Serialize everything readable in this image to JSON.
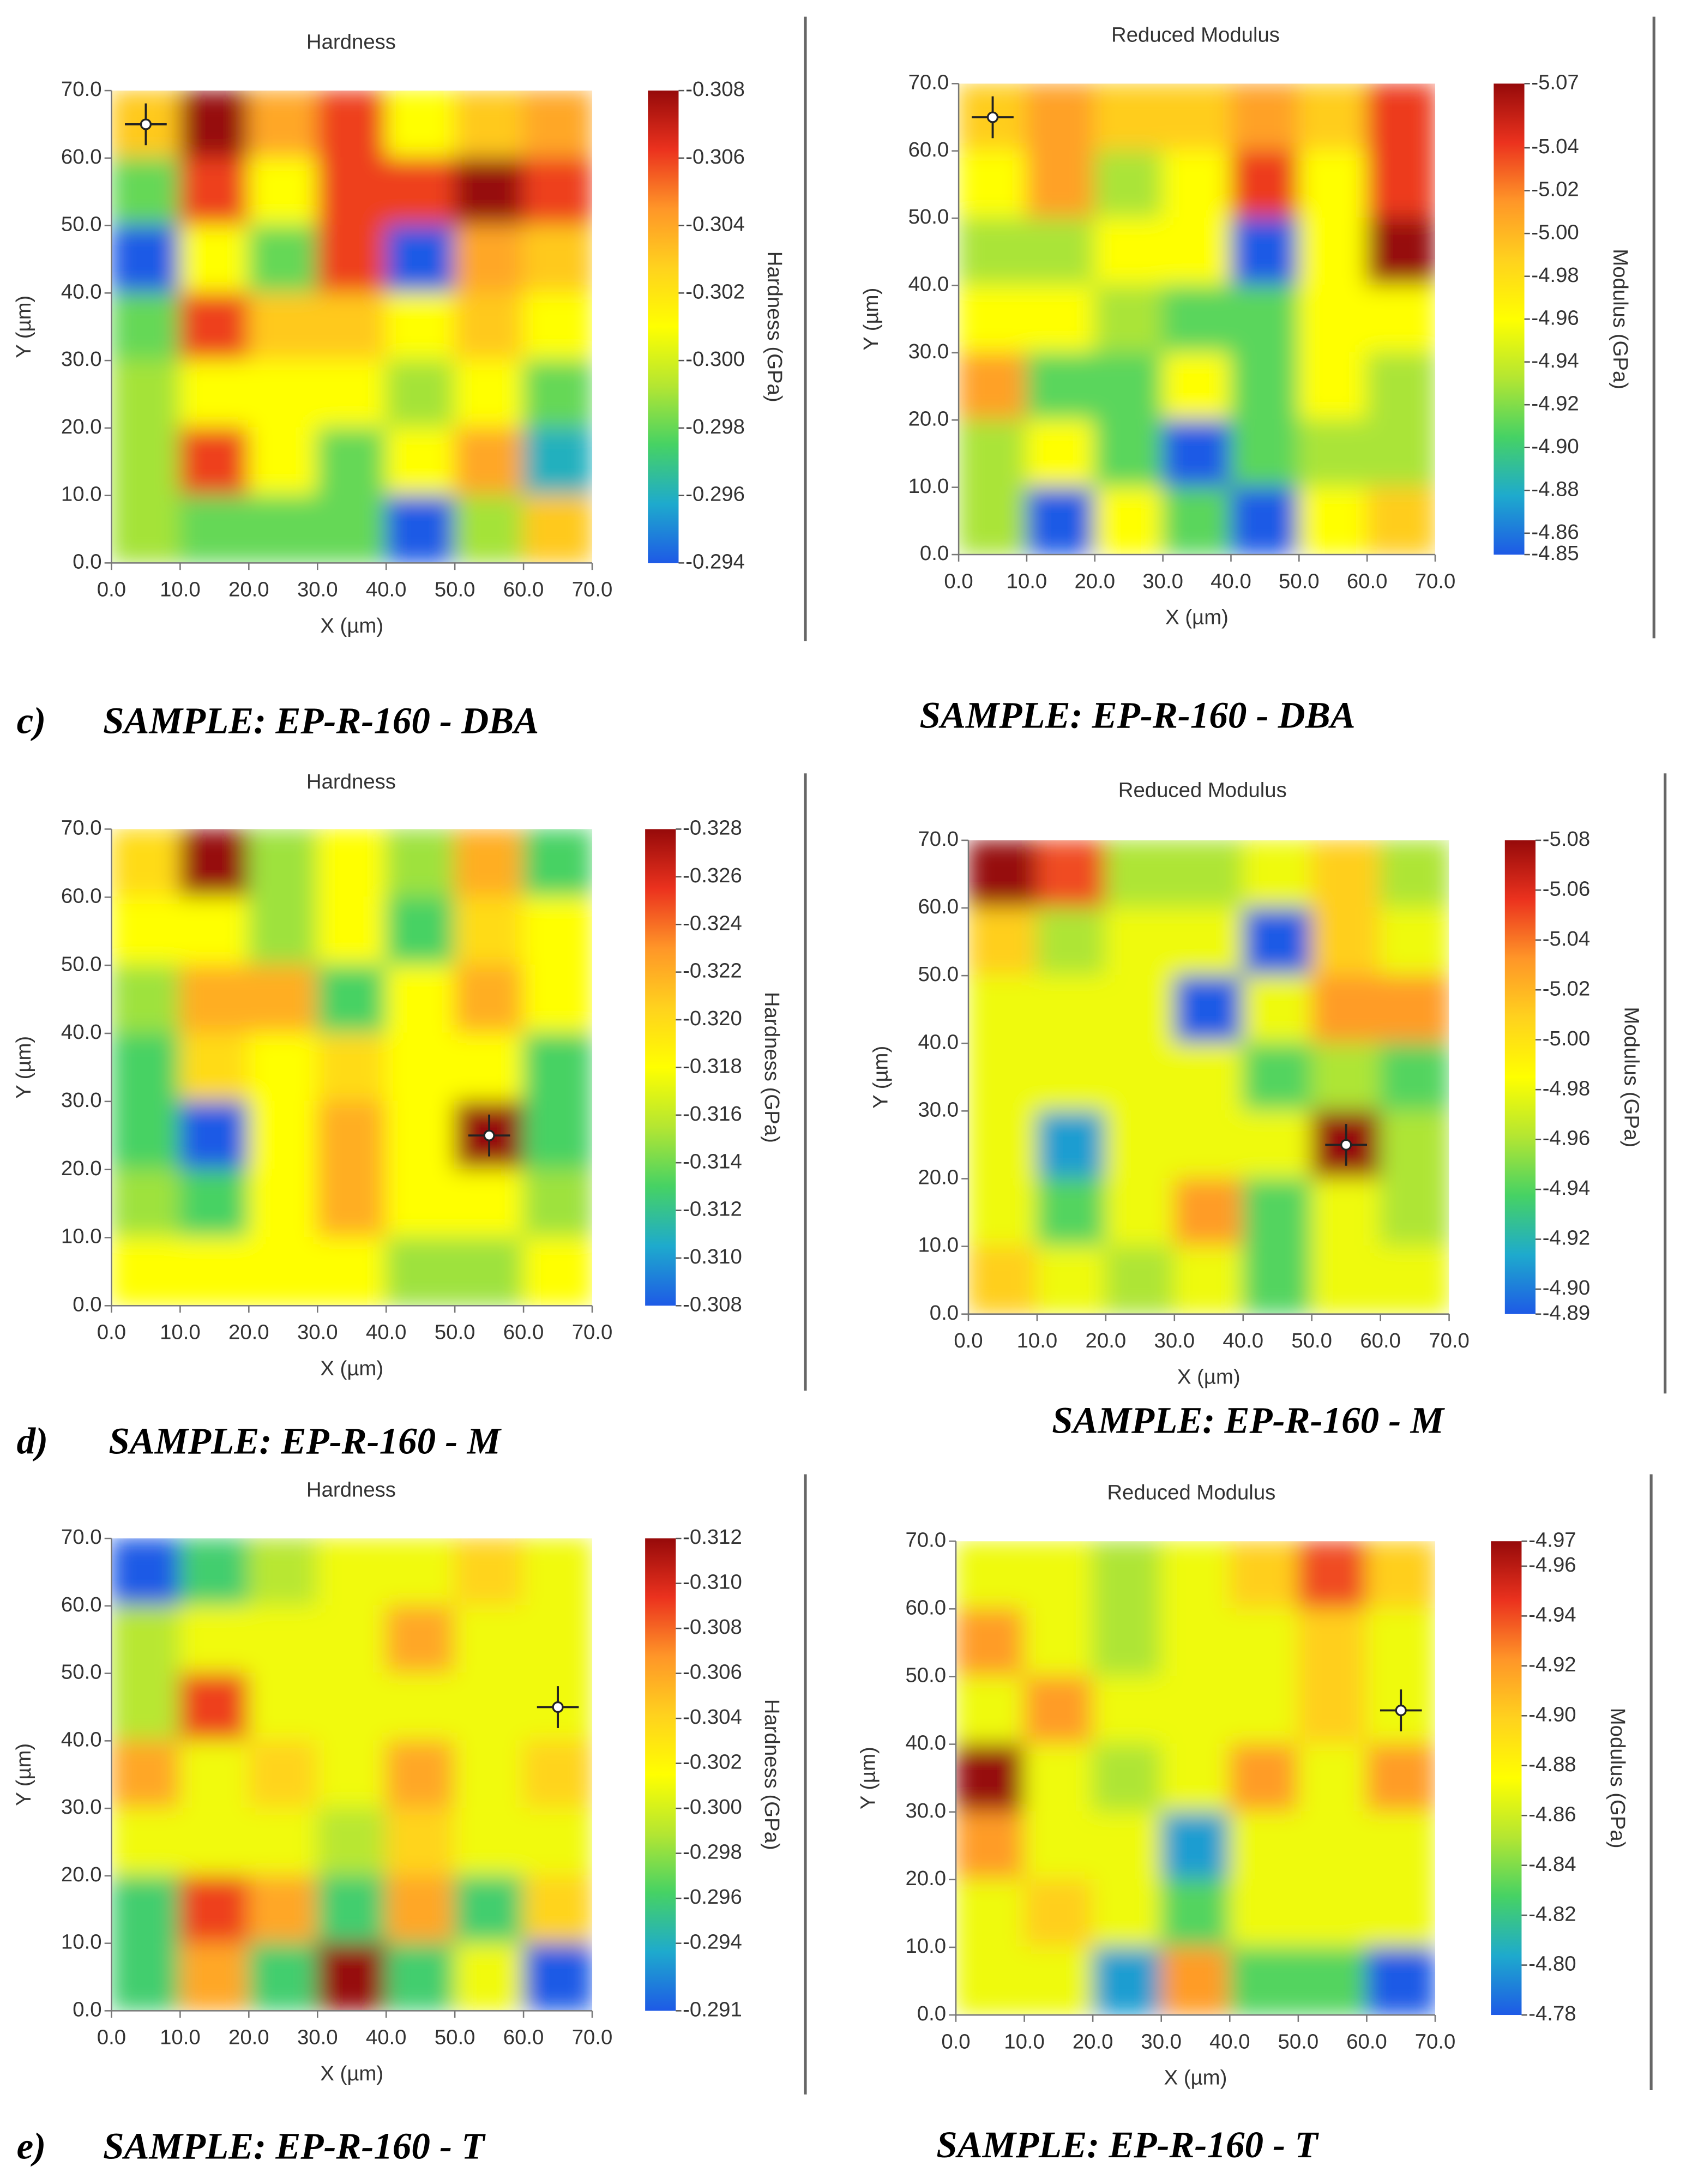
{
  "colormap": [
    "#1e5ae6",
    "#1eaacd",
    "#46d264",
    "#b4e632",
    "#ffff00",
    "#ffd21e",
    "#ff9628",
    "#eb321e",
    "#960a0a"
  ],
  "chart_data": [
    {
      "type": "heatmap",
      "title": "Hardness",
      "xlabel": "X (µm)",
      "ylabel": "Y (µm)",
      "colorbar_label": "Hardness (GPa)",
      "panel_label": "c)",
      "caption": "SAMPLE: EP-R-160 - DBA",
      "xlim": [
        0,
        70
      ],
      "ylim": [
        0,
        70
      ],
      "xticks": [
        {
          "value": 0,
          "label": "0.0"
        },
        {
          "value": 10,
          "label": "10.0"
        },
        {
          "value": 20,
          "label": "20.0"
        },
        {
          "value": 30,
          "label": "30.0"
        },
        {
          "value": 40,
          "label": "40.0"
        },
        {
          "value": 50,
          "label": "50.0"
        },
        {
          "value": 60,
          "label": "60.0"
        },
        {
          "value": 70,
          "label": "70.0"
        }
      ],
      "yticks": [
        {
          "value": 0,
          "label": "0.0"
        },
        {
          "value": 10,
          "label": "10.0"
        },
        {
          "value": 20,
          "label": "20.0"
        },
        {
          "value": 30,
          "label": "30.0"
        },
        {
          "value": 40,
          "label": "40.0"
        },
        {
          "value": 50,
          "label": "50.0"
        },
        {
          "value": 60,
          "label": "60.0"
        },
        {
          "value": 70,
          "label": "70.0"
        }
      ],
      "x": [
        5,
        15,
        25,
        35,
        45,
        55,
        65
      ],
      "y": [
        65,
        55,
        45,
        35,
        25,
        15,
        5
      ],
      "z": [
        [
          -0.303,
          -0.308,
          -0.304,
          -0.306,
          -0.301,
          -0.303,
          -0.304
        ],
        [
          -0.298,
          -0.306,
          -0.301,
          -0.306,
          -0.306,
          -0.308,
          -0.306
        ],
        [
          -0.294,
          -0.301,
          -0.298,
          -0.306,
          -0.294,
          -0.304,
          -0.303
        ],
        [
          -0.298,
          -0.306,
          -0.303,
          -0.303,
          -0.301,
          -0.303,
          -0.301
        ],
        [
          -0.299,
          -0.301,
          -0.301,
          -0.301,
          -0.299,
          -0.301,
          -0.298
        ],
        [
          -0.299,
          -0.306,
          -0.301,
          -0.298,
          -0.301,
          -0.304,
          -0.296
        ],
        [
          -0.299,
          -0.298,
          -0.298,
          -0.298,
          -0.294,
          -0.299,
          -0.303
        ]
      ],
      "clim": [
        -0.294,
        -0.308
      ],
      "cticks": [
        -0.308,
        -0.306,
        -0.304,
        -0.302,
        {
          "value": -0.3,
          "label": "-0.300"
        },
        -0.298,
        -0.296,
        -0.294
      ],
      "cursor": {
        "x": 5,
        "y": 65
      }
    },
    {
      "type": "heatmap",
      "title": "Reduced Modulus",
      "xlabel": "X (µm)",
      "ylabel": "Y (µm)",
      "colorbar_label": "Modulus (GPa)",
      "caption": "SAMPLE: EP-R-160 - DBA",
      "xlim": [
        0,
        70
      ],
      "ylim": [
        0,
        70
      ],
      "xticks": [
        {
          "value": 0,
          "label": "0.0"
        },
        {
          "value": 10,
          "label": "10.0"
        },
        {
          "value": 20,
          "label": "20.0"
        },
        {
          "value": 30,
          "label": "30.0"
        },
        {
          "value": 40,
          "label": "40.0"
        },
        {
          "value": 50,
          "label": "50.0"
        },
        {
          "value": 60,
          "label": "60.0"
        },
        {
          "value": 70,
          "label": "70.0"
        }
      ],
      "yticks": [
        {
          "value": 0,
          "label": "0.0"
        },
        {
          "value": 10,
          "label": "10.0"
        },
        {
          "value": 20,
          "label": "20.0"
        },
        {
          "value": 30,
          "label": "30.0"
        },
        {
          "value": 40,
          "label": "40.0"
        },
        {
          "value": 50,
          "label": "50.0"
        },
        {
          "value": 60,
          "label": "60.0"
        },
        {
          "value": 70,
          "label": "70.0"
        }
      ],
      "x": [
        5,
        15,
        25,
        35,
        45,
        55,
        65
      ],
      "y": [
        65,
        55,
        45,
        35,
        25,
        15,
        5
      ],
      "z": [
        [
          -4.99,
          -5.01,
          -4.99,
          -4.99,
          -5.01,
          -4.99,
          -5.04
        ],
        [
          -4.96,
          -5.01,
          -4.93,
          -4.96,
          -5.04,
          -4.96,
          -5.04
        ],
        [
          -4.93,
          -4.93,
          -4.96,
          -4.96,
          -4.85,
          -4.96,
          -5.07
        ],
        [
          -4.96,
          -4.96,
          -4.93,
          -4.91,
          -4.91,
          -4.96,
          -4.96
        ],
        [
          -5.01,
          -4.91,
          -4.91,
          -4.96,
          -4.91,
          -4.96,
          -4.93
        ],
        [
          -4.93,
          -4.96,
          -4.91,
          -4.85,
          -4.91,
          -4.93,
          -4.93
        ],
        [
          -4.93,
          -4.85,
          -4.96,
          -4.91,
          -4.85,
          -4.96,
          -4.99
        ]
      ],
      "clim": [
        -4.85,
        -5.07
      ],
      "cticks": [
        -5.07,
        -5.04,
        -5.02,
        {
          "value": -5,
          "label": "-5.00"
        },
        -4.98,
        -4.96,
        -4.94,
        -4.92,
        {
          "value": -4.9,
          "label": "-4.90"
        },
        -4.88,
        -4.86,
        -4.85
      ],
      "cursor": {
        "x": 5,
        "y": 65
      }
    },
    {
      "type": "heatmap",
      "title": "Hardness",
      "xlabel": "X (µm)",
      "ylabel": "Y (µm)",
      "colorbar_label": "Hardness (GPa)",
      "panel_label": "d)",
      "caption": "SAMPLE: EP-R-160 - M",
      "xlim": [
        0,
        70
      ],
      "ylim": [
        0,
        70
      ],
      "xticks": [
        {
          "value": 0,
          "label": "0.0"
        },
        {
          "value": 10,
          "label": "10.0"
        },
        {
          "value": 20,
          "label": "20.0"
        },
        {
          "value": 30,
          "label": "30.0"
        },
        {
          "value": 40,
          "label": "40.0"
        },
        {
          "value": 50,
          "label": "50.0"
        },
        {
          "value": 60,
          "label": "60.0"
        },
        {
          "value": 70,
          "label": "70.0"
        }
      ],
      "yticks": [
        {
          "value": 0,
          "label": "0.0"
        },
        {
          "value": 10,
          "label": "10.0"
        },
        {
          "value": 20,
          "label": "20.0"
        },
        {
          "value": 30,
          "label": "30.0"
        },
        {
          "value": 40,
          "label": "40.0"
        },
        {
          "value": 50,
          "label": "50.0"
        },
        {
          "value": 60,
          "label": "60.0"
        },
        {
          "value": 70,
          "label": "70.0"
        }
      ],
      "x": [
        5,
        15,
        25,
        35,
        45,
        55,
        65
      ],
      "y": [
        65,
        55,
        45,
        35,
        25,
        15,
        5
      ],
      "z": [
        [
          -0.32,
          -0.328,
          -0.315,
          -0.318,
          -0.315,
          -0.322,
          -0.313
        ],
        [
          -0.318,
          -0.318,
          -0.315,
          -0.318,
          -0.313,
          -0.32,
          -0.318
        ],
        [
          -0.315,
          -0.322,
          -0.322,
          -0.313,
          -0.318,
          -0.322,
          -0.318
        ],
        [
          -0.313,
          -0.32,
          -0.318,
          -0.32,
          -0.318,
          -0.318,
          -0.313
        ],
        [
          -0.313,
          -0.308,
          -0.318,
          -0.322,
          -0.318,
          -0.328,
          -0.313
        ],
        [
          -0.315,
          -0.313,
          -0.318,
          -0.322,
          -0.318,
          -0.318,
          -0.315
        ],
        [
          -0.318,
          -0.318,
          -0.318,
          -0.318,
          -0.315,
          -0.315,
          -0.318
        ]
      ],
      "clim": [
        -0.308,
        -0.328
      ],
      "cticks": [
        -0.328,
        -0.326,
        -0.324,
        -0.322,
        {
          "value": -0.32,
          "label": "-0.320"
        },
        -0.318,
        -0.316,
        -0.314,
        -0.312,
        {
          "value": -0.31,
          "label": "-0.310"
        },
        -0.308
      ],
      "cursor": {
        "x": 55,
        "y": 25
      }
    },
    {
      "type": "heatmap",
      "title": "Reduced Modulus",
      "xlabel": "X (µm)",
      "ylabel": "Y (µm)",
      "colorbar_label": "Modulus (GPa)",
      "caption": "SAMPLE: EP-R-160 - M",
      "xlim": [
        0,
        70
      ],
      "ylim": [
        0,
        70
      ],
      "xticks": [
        {
          "value": 0,
          "label": "0.0"
        },
        {
          "value": 10,
          "label": "10.0"
        },
        {
          "value": 20,
          "label": "20.0"
        },
        {
          "value": 30,
          "label": "30.0"
        },
        {
          "value": 40,
          "label": "40.0"
        },
        {
          "value": 50,
          "label": "50.0"
        },
        {
          "value": 60,
          "label": "60.0"
        },
        {
          "value": 70,
          "label": "70.0"
        }
      ],
      "yticks": [
        {
          "value": 0,
          "label": "0.0"
        },
        {
          "value": 10,
          "label": "10.0"
        },
        {
          "value": 20,
          "label": "20.0"
        },
        {
          "value": 30,
          "label": "30.0"
        },
        {
          "value": 40,
          "label": "40.0"
        },
        {
          "value": 50,
          "label": "50.0"
        },
        {
          "value": 60,
          "label": "60.0"
        },
        {
          "value": 70,
          "label": "70.0"
        }
      ],
      "x": [
        5,
        15,
        25,
        35,
        45,
        55,
        65
      ],
      "y": [
        65,
        55,
        45,
        35,
        25,
        15,
        5
      ],
      "z": [
        [
          -5.08,
          -5.05,
          -4.96,
          -4.96,
          -4.98,
          -5.01,
          -4.96
        ],
        [
          -5.01,
          -4.96,
          -4.98,
          -4.98,
          -4.89,
          -5.01,
          -4.98
        ],
        [
          -4.98,
          -4.98,
          -4.98,
          -4.89,
          -4.98,
          -5.03,
          -5.03
        ],
        [
          -4.98,
          -4.98,
          -4.98,
          -4.98,
          -4.94,
          -4.96,
          -4.94
        ],
        [
          -4.98,
          -4.91,
          -4.98,
          -4.98,
          -4.98,
          -5.08,
          -4.96
        ],
        [
          -4.98,
          -4.94,
          -4.98,
          -5.03,
          -4.94,
          -4.98,
          -4.96
        ],
        [
          -5.01,
          -4.98,
          -4.96,
          -4.98,
          -4.94,
          -4.98,
          -4.98
        ]
      ],
      "clim": [
        -4.89,
        -5.08
      ],
      "cticks": [
        -5.08,
        -5.06,
        -5.04,
        -5.02,
        {
          "value": -5,
          "label": "-5.00"
        },
        -4.98,
        -4.96,
        -4.94,
        -4.92,
        {
          "value": -4.9,
          "label": "-4.90"
        },
        -4.89
      ],
      "cursor": {
        "x": 55,
        "y": 25
      }
    },
    {
      "type": "heatmap",
      "title": "Hardness",
      "xlabel": "X (µm)",
      "ylabel": "Y (µm)",
      "colorbar_label": "Hardness (GPa)",
      "panel_label": "e)",
      "caption": "SAMPLE: EP-R-160 - T",
      "xlim": [
        0,
        70
      ],
      "ylim": [
        0,
        70
      ],
      "xticks": [
        {
          "value": 0,
          "label": "0.0"
        },
        {
          "value": 10,
          "label": "10.0"
        },
        {
          "value": 20,
          "label": "20.0"
        },
        {
          "value": 30,
          "label": "30.0"
        },
        {
          "value": 40,
          "label": "40.0"
        },
        {
          "value": 50,
          "label": "50.0"
        },
        {
          "value": 60,
          "label": "60.0"
        },
        {
          "value": 70,
          "label": "70.0"
        }
      ],
      "yticks": [
        {
          "value": 0,
          "label": "0.0"
        },
        {
          "value": 10,
          "label": "10.0"
        },
        {
          "value": 20,
          "label": "20.0"
        },
        {
          "value": 30,
          "label": "30.0"
        },
        {
          "value": 40,
          "label": "40.0"
        },
        {
          "value": 50,
          "label": "50.0"
        },
        {
          "value": 60,
          "label": "60.0"
        },
        {
          "value": 70,
          "label": "70.0"
        }
      ],
      "x": [
        5,
        15,
        25,
        35,
        45,
        55,
        65
      ],
      "y": [
        65,
        55,
        45,
        35,
        25,
        15,
        5
      ],
      "z": [
        [
          -0.291,
          -0.296,
          -0.299,
          -0.301,
          -0.301,
          -0.304,
          -0.301
        ],
        [
          -0.299,
          -0.301,
          -0.301,
          -0.301,
          -0.306,
          -0.301,
          -0.301
        ],
        [
          -0.299,
          -0.309,
          -0.301,
          -0.301,
          -0.301,
          -0.301,
          -0.301
        ],
        [
          -0.306,
          -0.301,
          -0.304,
          -0.301,
          -0.306,
          -0.301,
          -0.304
        ],
        [
          -0.301,
          -0.301,
          -0.301,
          -0.299,
          -0.304,
          -0.301,
          -0.301
        ],
        [
          -0.296,
          -0.309,
          -0.306,
          -0.296,
          -0.306,
          -0.296,
          -0.304
        ],
        [
          -0.296,
          -0.306,
          -0.296,
          -0.312,
          -0.296,
          -0.301,
          -0.291
        ]
      ],
      "clim": [
        -0.291,
        -0.312
      ],
      "cticks": [
        -0.312,
        {
          "value": -0.31,
          "label": "-0.310"
        },
        -0.308,
        -0.306,
        -0.304,
        -0.302,
        {
          "value": -0.3,
          "label": "-0.300"
        },
        -0.298,
        -0.296,
        -0.294,
        -0.291
      ],
      "cursor": {
        "x": 65,
        "y": 45
      }
    },
    {
      "type": "heatmap",
      "title": "Reduced Modulus",
      "xlabel": "X (µm)",
      "ylabel": "Y (µm)",
      "colorbar_label": "Modulus (GPa)",
      "caption": "SAMPLE: EP-R-160 - T",
      "xlim": [
        0,
        70
      ],
      "ylim": [
        0,
        70
      ],
      "xticks": [
        {
          "value": 0,
          "label": "0.0"
        },
        {
          "value": 10,
          "label": "10.0"
        },
        {
          "value": 20,
          "label": "20.0"
        },
        {
          "value": 30,
          "label": "30.0"
        },
        {
          "value": 40,
          "label": "40.0"
        },
        {
          "value": 50,
          "label": "50.0"
        },
        {
          "value": 60,
          "label": "60.0"
        },
        {
          "value": 70,
          "label": "70.0"
        }
      ],
      "yticks": [
        {
          "value": 0,
          "label": "0.0"
        },
        {
          "value": 10,
          "label": "10.0"
        },
        {
          "value": 20,
          "label": "20.0"
        },
        {
          "value": 30,
          "label": "30.0"
        },
        {
          "value": 40,
          "label": "40.0"
        },
        {
          "value": 50,
          "label": "50.0"
        },
        {
          "value": 60,
          "label": "60.0"
        },
        {
          "value": 70,
          "label": "70.0"
        }
      ],
      "x": [
        5,
        15,
        25,
        35,
        45,
        55,
        65
      ],
      "y": [
        65,
        55,
        45,
        35,
        25,
        15,
        5
      ],
      "z": [
        [
          -4.87,
          -4.87,
          -4.85,
          -4.87,
          -4.9,
          -4.94,
          -4.9
        ],
        [
          -4.92,
          -4.87,
          -4.85,
          -4.87,
          -4.87,
          -4.9,
          -4.87
        ],
        [
          -4.87,
          -4.92,
          -4.87,
          -4.87,
          -4.87,
          -4.9,
          -4.87
        ],
        [
          -4.97,
          -4.87,
          -4.85,
          -4.87,
          -4.92,
          -4.87,
          -4.92
        ],
        [
          -4.92,
          -4.87,
          -4.87,
          -4.8,
          -4.87,
          -4.87,
          -4.87
        ],
        [
          -4.87,
          -4.9,
          -4.87,
          -4.83,
          -4.87,
          -4.87,
          -4.87
        ],
        [
          -4.87,
          -4.87,
          -4.8,
          -4.92,
          -4.83,
          -4.83,
          -4.78
        ]
      ],
      "clim": [
        -4.78,
        -4.97
      ],
      "cticks": [
        -4.97,
        -4.96,
        -4.94,
        -4.92,
        {
          "value": -4.9,
          "label": "-4.90"
        },
        -4.88,
        -4.86,
        -4.84,
        -4.82,
        {
          "value": -4.8,
          "label": "-4.80"
        },
        -4.78
      ],
      "cursor": {
        "x": 65,
        "y": 45
      }
    }
  ]
}
